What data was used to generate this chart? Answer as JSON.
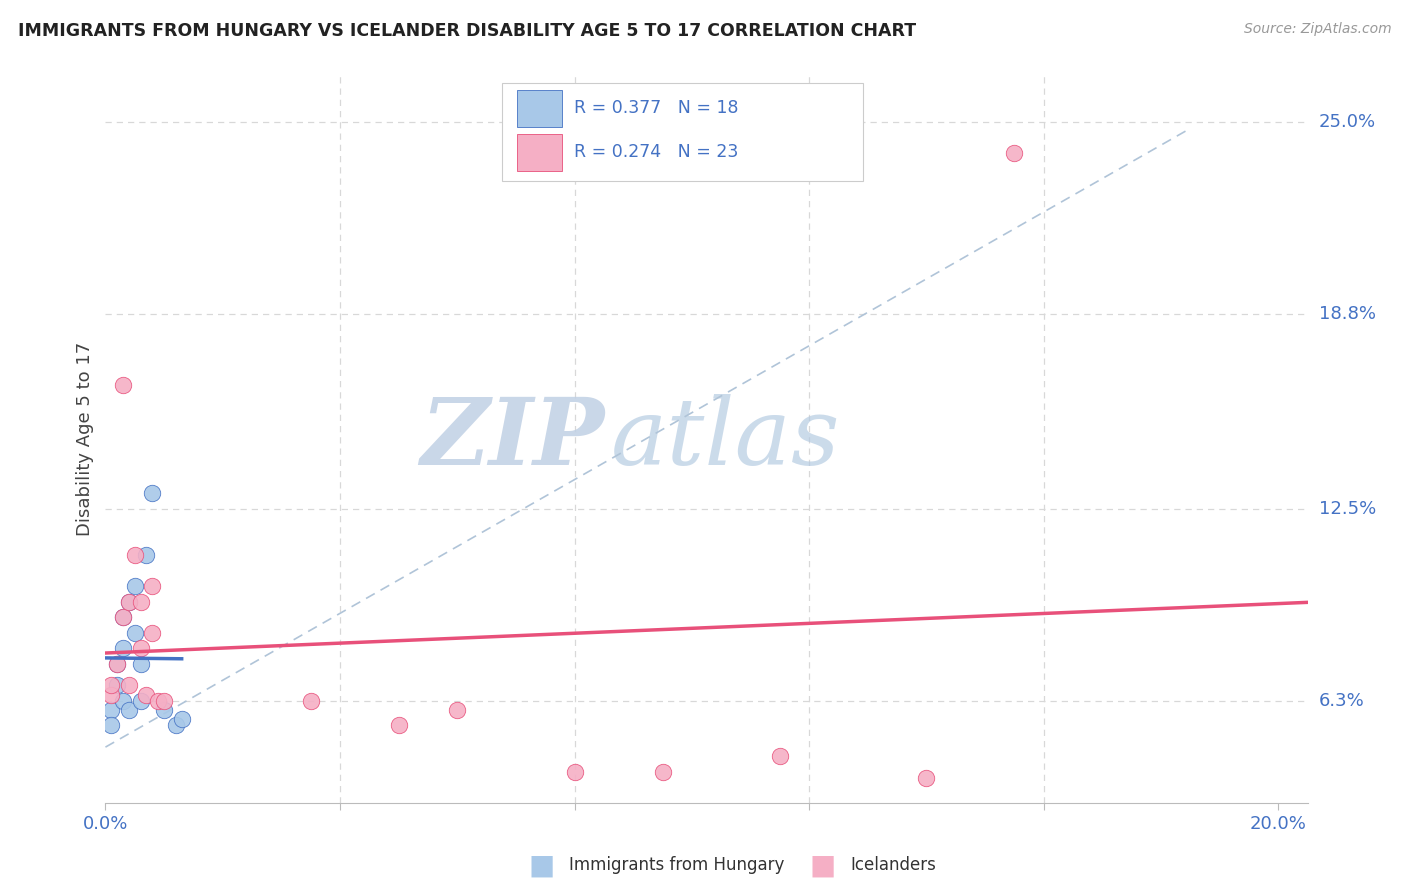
{
  "title": "IMMIGRANTS FROM HUNGARY VS ICELANDER DISABILITY AGE 5 TO 17 CORRELATION CHART",
  "source": "Source: ZipAtlas.com",
  "ylabel": "Disability Age 5 to 17",
  "xlim": [
    0.0,
    0.205
  ],
  "ylim": [
    0.03,
    0.265
  ],
  "color_hungary": "#a8c8e8",
  "color_iceland": "#f5afc5",
  "line_color_hungary": "#4472c4",
  "line_color_iceland": "#e8507a",
  "dashed_line_color": "#b0c4d8",
  "grid_color": "#d8d8d8",
  "watermark_color_zip": "#c8d8ec",
  "watermark_color_atlas": "#b8cce0",
  "ytick_positions": [
    0.063,
    0.125,
    0.188,
    0.25
  ],
  "ytick_labels": [
    "6.3%",
    "12.5%",
    "18.8%",
    "25.0%"
  ],
  "hungary_x": [
    0.001,
    0.001,
    0.002,
    0.002,
    0.003,
    0.003,
    0.003,
    0.004,
    0.004,
    0.005,
    0.005,
    0.006,
    0.006,
    0.007,
    0.008,
    0.01,
    0.012,
    0.013
  ],
  "hungary_y": [
    0.06,
    0.055,
    0.075,
    0.068,
    0.063,
    0.08,
    0.09,
    0.06,
    0.095,
    0.1,
    0.085,
    0.075,
    0.063,
    0.11,
    0.13,
    0.06,
    0.055,
    0.057
  ],
  "iceland_x": [
    0.001,
    0.001,
    0.002,
    0.003,
    0.003,
    0.004,
    0.004,
    0.005,
    0.006,
    0.006,
    0.007,
    0.008,
    0.008,
    0.009,
    0.01,
    0.035,
    0.05,
    0.06,
    0.08,
    0.095,
    0.115,
    0.14,
    0.155
  ],
  "iceland_y": [
    0.065,
    0.068,
    0.075,
    0.09,
    0.165,
    0.095,
    0.068,
    0.11,
    0.095,
    0.08,
    0.065,
    0.085,
    0.1,
    0.063,
    0.063,
    0.063,
    0.055,
    0.06,
    0.04,
    0.04,
    0.045,
    0.038,
    0.24
  ]
}
